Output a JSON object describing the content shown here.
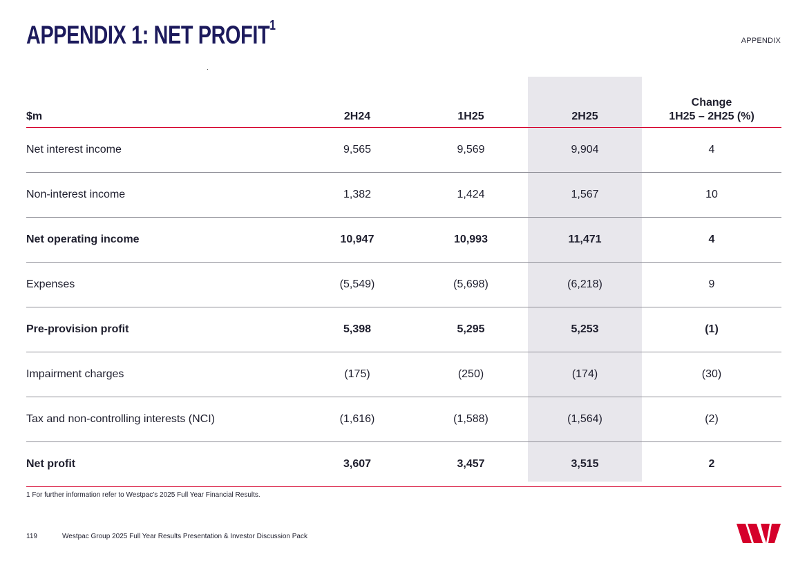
{
  "header": {
    "title": "APPENDIX 1: NET PROFIT",
    "title_superscript": "1",
    "section_tag": "APPENDIX"
  },
  "table": {
    "columns": {
      "label": "$m",
      "p1": "2H24",
      "p2": "1H25",
      "p3": "2H25",
      "change_line1": "Change",
      "change_line2": "1H25 – 2H25 (%)"
    },
    "rows": [
      {
        "label": "Net interest income",
        "p1": "9,565",
        "p2": "9,569",
        "p3": "9,904",
        "change": "4",
        "bold": false
      },
      {
        "label": "Non-interest income",
        "p1": "1,382",
        "p2": "1,424",
        "p3": "1,567",
        "change": "10",
        "bold": false
      },
      {
        "label": "Net operating income",
        "p1": "10,947",
        "p2": "10,993",
        "p3": "11,471",
        "change": "4",
        "bold": true
      },
      {
        "label": "Expenses",
        "p1": "(5,549)",
        "p2": "(5,698)",
        "p3": "(6,218)",
        "change": "9",
        "bold": false
      },
      {
        "label": "Pre-provision profit",
        "p1": "5,398",
        "p2": "5,295",
        "p3": "5,253",
        "change": "(1)",
        "bold": true
      },
      {
        "label": "Impairment charges",
        "p1": "(175)",
        "p2": "(250)",
        "p3": "(174)",
        "change": "(30)",
        "bold": false
      },
      {
        "label": "Tax and non-controlling interests (NCI)",
        "p1": "(1,616)",
        "p2": "(1,588)",
        "p3": "(1,564)",
        "change": "(2)",
        "bold": false
      },
      {
        "label": "Net profit",
        "p1": "3,607",
        "p2": "3,457",
        "p3": "3,515",
        "change": "2",
        "bold": true
      }
    ]
  },
  "footnote": "1 For further information refer to Westpac’s 2025 Full Year Financial Results.",
  "footer": {
    "page_number": "119",
    "text": "Westpac Group 2025 Full Year Results Presentation & Investor Discussion Pack"
  },
  "colors": {
    "title": "#1c1a5c",
    "accent_red": "#d5002b",
    "highlight_column": "#e8e7ec"
  },
  "icons": {
    "logo": "westpac-w-logo"
  }
}
